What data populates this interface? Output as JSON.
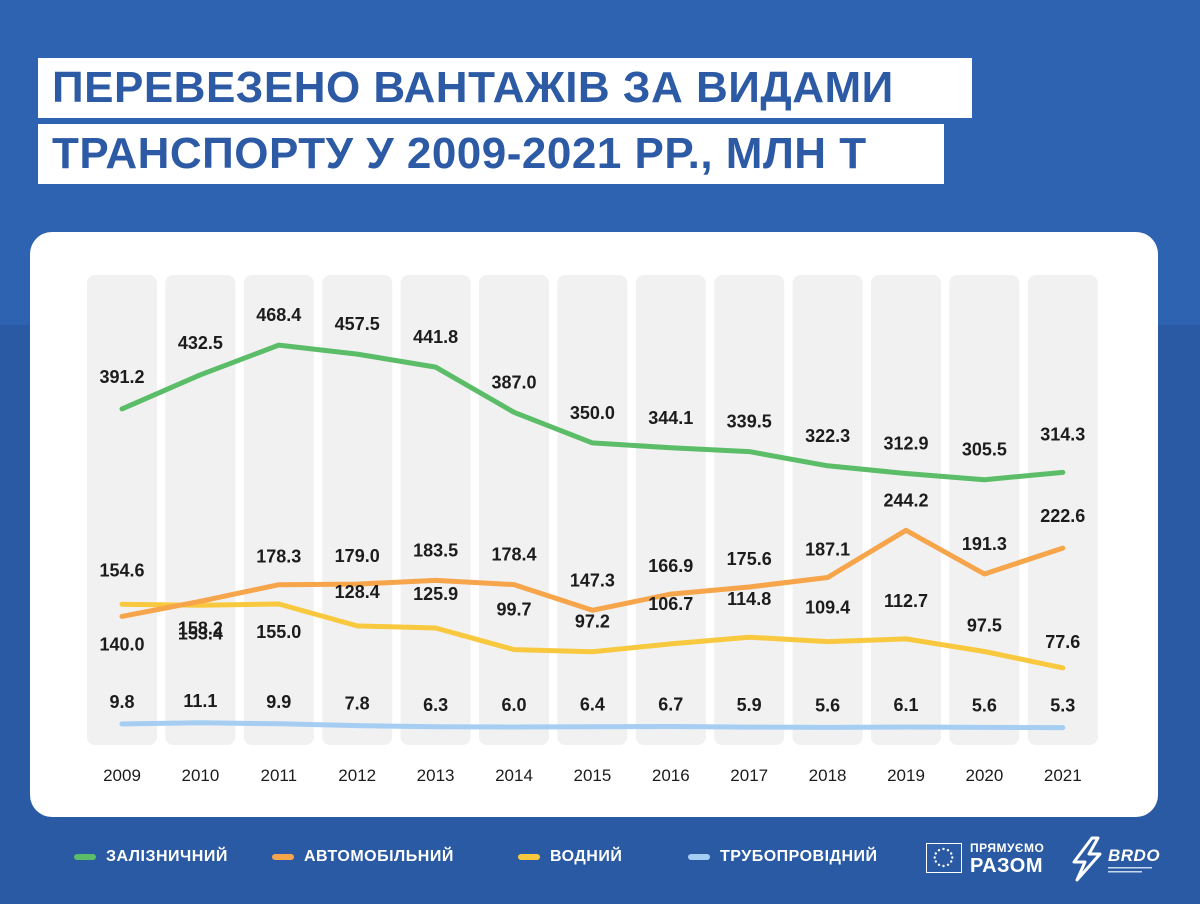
{
  "title": {
    "line1": "ПЕРЕВЕЗЕНО ВАНТАЖІВ ЗА ВИДАМИ",
    "line2": "ТРАНСПОРТУ У 2009-2021 РР., МЛН Т"
  },
  "chart_data": {
    "type": "line",
    "title": "ПЕРЕВЕЗЕНО ВАНТАЖІВ ЗА ВИДАМИ ТРАНСПОРТУ У 2009-2021 РР., МЛН Т",
    "x": [
      "2009",
      "2010",
      "2011",
      "2012",
      "2013",
      "2014",
      "2015",
      "2016",
      "2017",
      "2018",
      "2019",
      "2020",
      "2021"
    ],
    "series": [
      {
        "name": "ЗАЛІЗНИЧНИЙ",
        "color": "#5bbd67",
        "values": [
          391.2,
          432.5,
          468.4,
          457.5,
          441.8,
          387.0,
          350.0,
          344.1,
          339.5,
          322.3,
          312.9,
          305.5,
          314.3
        ]
      },
      {
        "name": "АВТОМОБІЛЬНИЙ",
        "color": "#f6a54a",
        "values": [
          140.0,
          158.2,
          178.3,
          179.0,
          183.5,
          178.4,
          147.3,
          166.9,
          175.6,
          187.1,
          244.2,
          191.3,
          222.6
        ]
      },
      {
        "name": "ВОДНИЙ",
        "color": "#f8c93e",
        "values": [
          154.6,
          153.4,
          155.0,
          128.4,
          125.9,
          99.7,
          97.2,
          106.7,
          114.8,
          109.4,
          112.7,
          97.5,
          77.6
        ]
      },
      {
        "name": "ТРУБОПРОВІДНИЙ",
        "color": "#a6cdf2",
        "values": [
          9.8,
          11.1,
          9.9,
          7.8,
          6.3,
          6.0,
          6.4,
          6.7,
          5.9,
          5.6,
          6.1,
          5.6,
          5.3
        ]
      }
    ],
    "grid": false,
    "legend_position": "bottom"
  },
  "labels": {
    "s0": [
      "391.2",
      "432.5",
      "468.4",
      "457.5",
      "441.8",
      "387.0",
      "350.0",
      "344.1",
      "339.5",
      "322.3",
      "312.9",
      "305.5",
      "314.3"
    ],
    "s1": [
      "140.0",
      "158.2",
      "178.3",
      "179.0",
      "183.5",
      "178.4",
      "147.3",
      "166.9",
      "175.6",
      "187.1",
      "244.2",
      "191.3",
      "222.6"
    ],
    "s2": [
      "154.6",
      "153.4",
      "155.0",
      "128.4",
      "125.9",
      "99.7",
      "97.2",
      "106.7",
      "114.8",
      "109.4",
      "112.7",
      "97.5",
      "77.6"
    ],
    "s3": [
      "9.8",
      "11.1",
      "9.9",
      "7.8",
      "6.3",
      "6.0",
      "6.4",
      "6.7",
      "5.9",
      "5.6",
      "6.1",
      "5.6",
      "5.3"
    ]
  },
  "logos": {
    "partner_small": "ПРЯМУЄМО",
    "partner_big": "РАЗОМ",
    "brdo": "BRDO"
  }
}
